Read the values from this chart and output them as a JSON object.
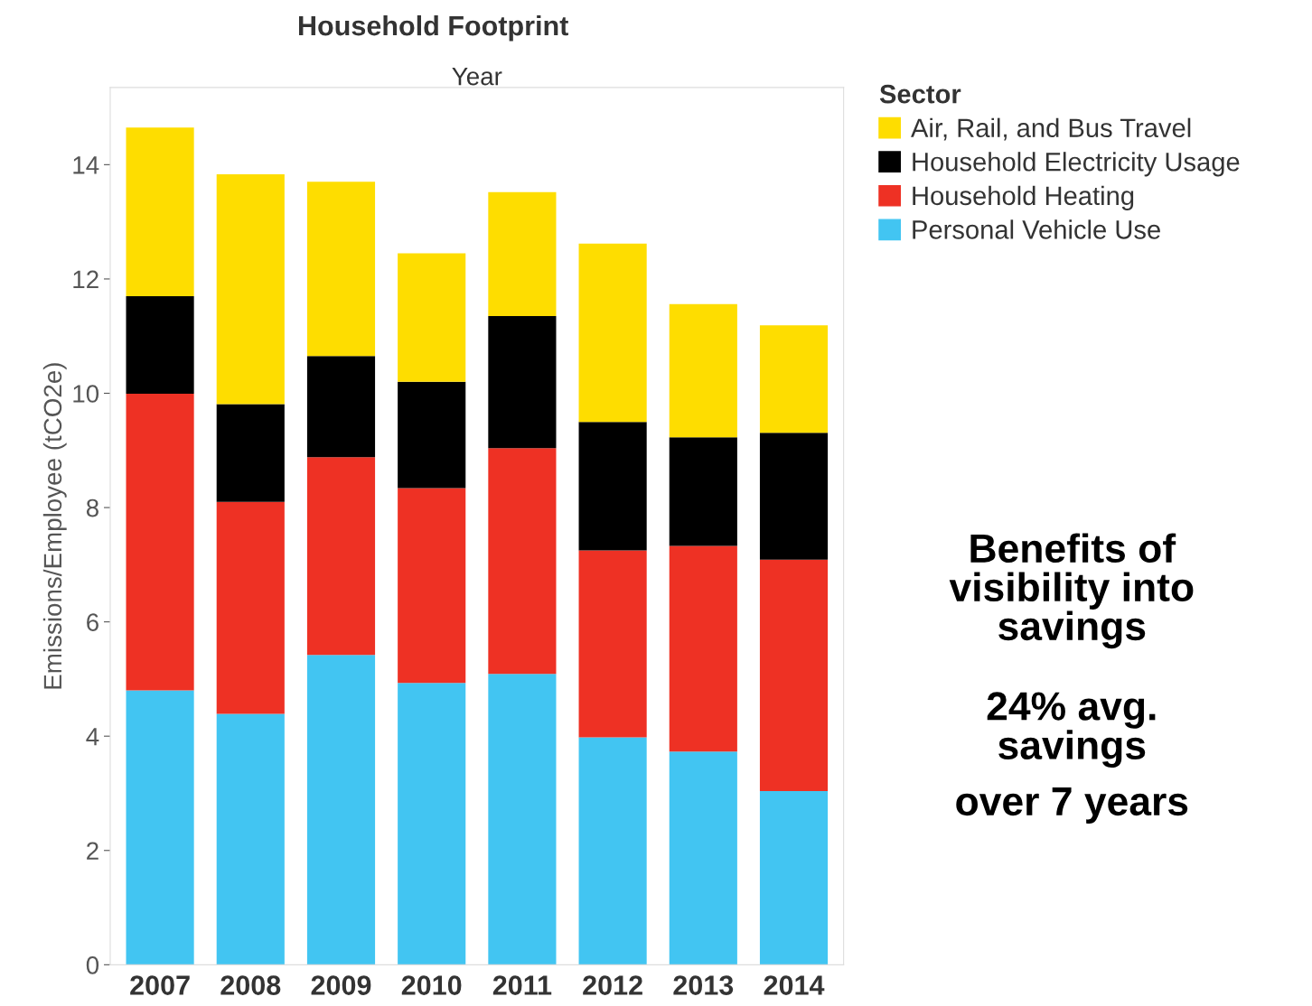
{
  "chart_data": {
    "type": "bar",
    "stacked": true,
    "title": "Household Footprint",
    "xlabel": "Year",
    "ylabel": "Emissions/Employee (tCO2e)",
    "legend_title": "Sector",
    "legend": "right",
    "grid": false,
    "categories": [
      "2007",
      "2008",
      "2009",
      "2010",
      "2011",
      "2012",
      "2013",
      "2014"
    ],
    "ylim": [
      0,
      15.35
    ],
    "yticks": [
      0,
      2,
      4,
      6,
      8,
      10,
      12,
      14
    ],
    "series": [
      {
        "name": "Personal Vehicle Use",
        "color": "#42c5f2",
        "values": [
          4.8,
          4.39,
          5.42,
          4.93,
          5.09,
          3.98,
          3.73,
          3.04
        ]
      },
      {
        "name": "Household Heating",
        "color": "#ee3124",
        "values": [
          5.19,
          3.71,
          3.46,
          3.41,
          3.95,
          3.27,
          3.6,
          4.05
        ]
      },
      {
        "name": "Household Electricity Usage",
        "color": "#000000",
        "values": [
          1.71,
          1.71,
          1.77,
          1.86,
          2.31,
          2.25,
          1.9,
          2.22
        ]
      },
      {
        "name": "Air, Rail, and Bus Travel",
        "color": "#fedd00",
        "values": [
          2.95,
          4.02,
          3.05,
          2.25,
          2.17,
          3.12,
          2.33,
          1.88
        ]
      }
    ],
    "annotations": [
      "Benefits of\nvisibility into\nsavings",
      "24% avg.\nsavings",
      "over 7 years"
    ]
  }
}
